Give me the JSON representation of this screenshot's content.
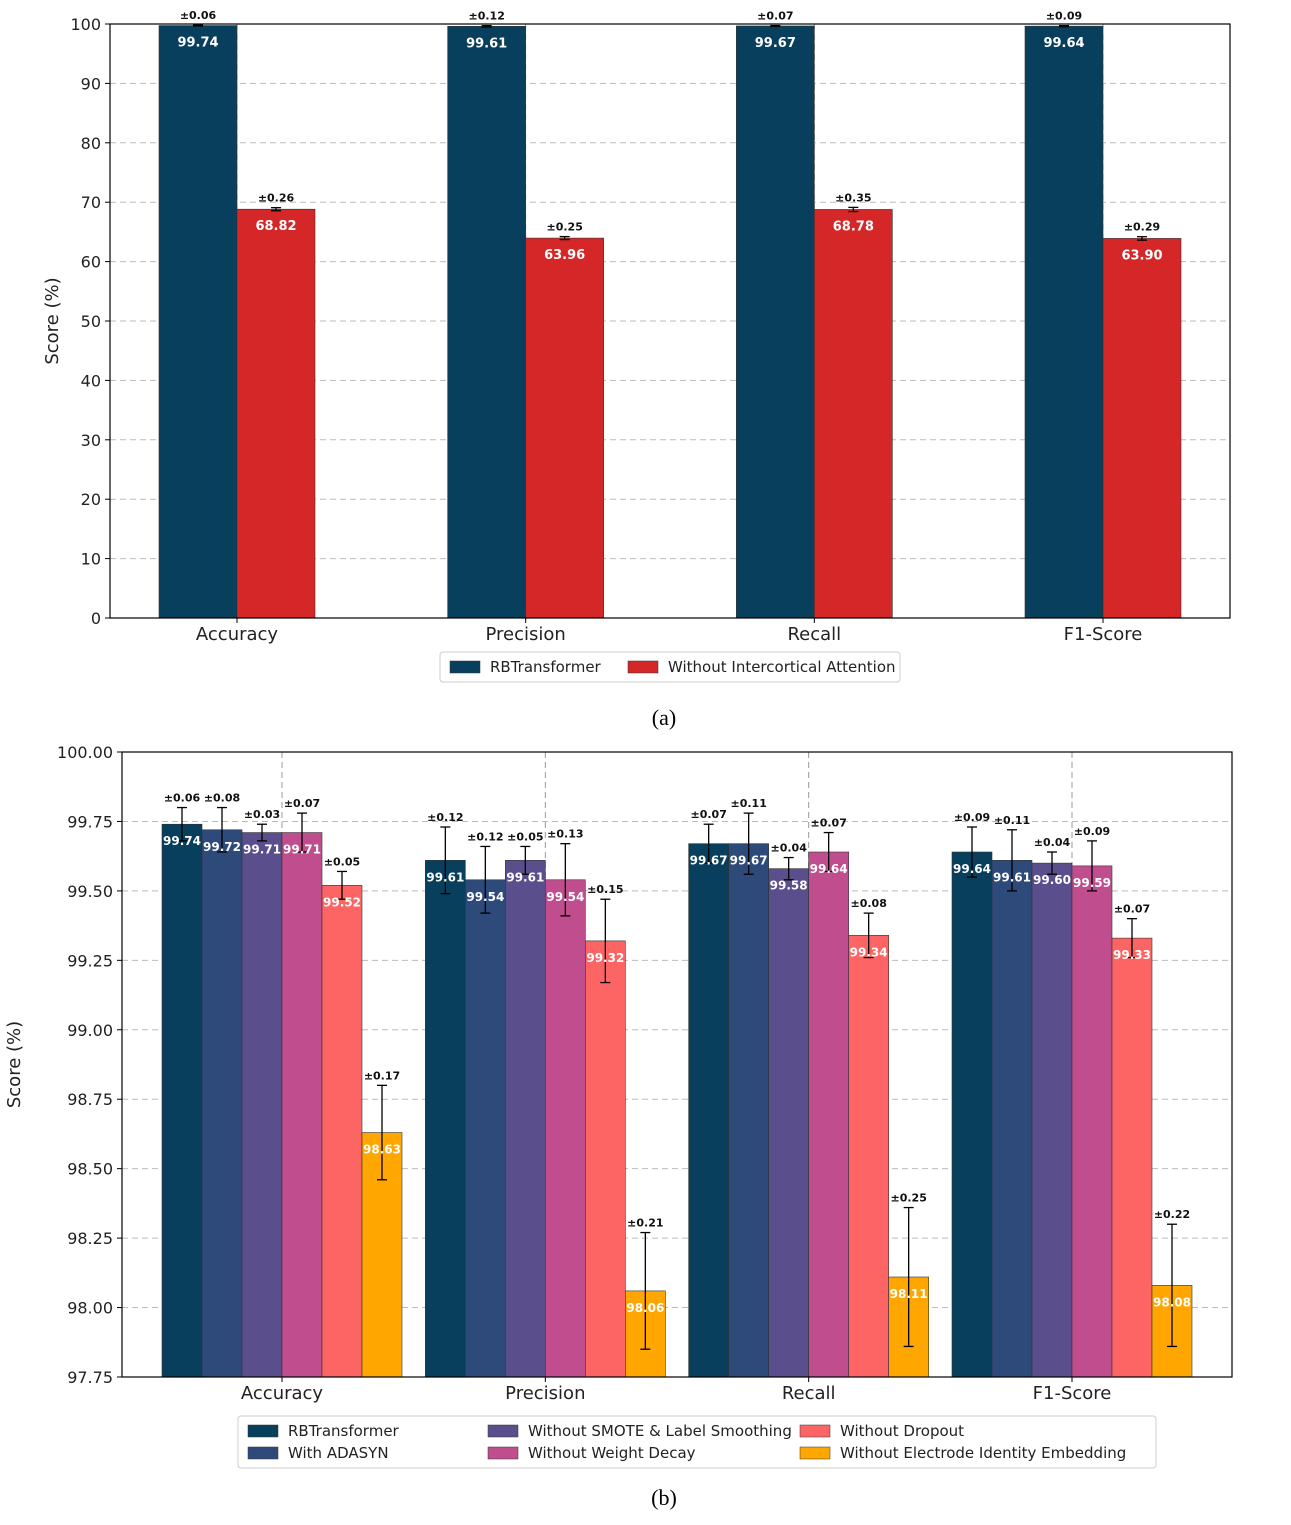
{
  "figure_captions": [
    "(a)",
    "(b)"
  ],
  "colors": {
    "grid": "#bbbbbb",
    "axis": "#000000",
    "vline": "#999999"
  },
  "chart_data": [
    {
      "type": "bar",
      "title": "",
      "xlabel": "",
      "ylabel": "Score (%)",
      "ylim": [
        0,
        100
      ],
      "yticks": [
        "0",
        "10",
        "20",
        "30",
        "40",
        "50",
        "60",
        "70",
        "80",
        "90",
        "100"
      ],
      "ytick_values": [
        0,
        10,
        20,
        30,
        40,
        50,
        60,
        70,
        80,
        90,
        100
      ],
      "grid": true,
      "legend_position": "bottom-center",
      "categories": [
        "Accuracy",
        "Precision",
        "Recall",
        "F1-Score"
      ],
      "series": [
        {
          "name": "RBTransformer",
          "color": "#073f5c",
          "label_color": "#ffffff",
          "values": [
            99.74,
            99.61,
            99.67,
            99.64
          ],
          "value_labels": [
            "99.74",
            "99.61",
            "99.67",
            "99.64"
          ],
          "errors": [
            0.06,
            0.12,
            0.07,
            0.09
          ],
          "error_labels": [
            "±0.06",
            "±0.12",
            "±0.07",
            "±0.09"
          ]
        },
        {
          "name": "Without Intercortical Attention",
          "color": "#d62728",
          "label_color": "#ffffff",
          "values": [
            68.82,
            63.96,
            68.78,
            63.9
          ],
          "value_labels": [
            "68.82",
            "63.96",
            "68.78",
            "63.90"
          ],
          "errors": [
            0.26,
            0.25,
            0.35,
            0.29
          ],
          "error_labels": [
            "±0.26",
            "±0.25",
            "±0.35",
            "±0.29"
          ]
        }
      ]
    },
    {
      "type": "bar",
      "title": "",
      "xlabel": "",
      "ylabel": "Score (%)",
      "ylim": [
        97.75,
        100.0
      ],
      "yticks": [
        "97.75",
        "98.00",
        "98.25",
        "98.50",
        "98.75",
        "99.00",
        "99.25",
        "99.50",
        "99.75",
        "100.00"
      ],
      "ytick_values": [
        97.75,
        98.0,
        98.25,
        98.5,
        98.75,
        99.0,
        99.25,
        99.5,
        99.75,
        100.0
      ],
      "grid": true,
      "legend_position": "bottom-center",
      "categories": [
        "Accuracy",
        "Precision",
        "Recall",
        "F1-Score"
      ],
      "series": [
        {
          "name": "RBTransformer",
          "color": "#073f5c",
          "label_color": "#ffffff",
          "values": [
            99.74,
            99.61,
            99.67,
            99.64
          ],
          "value_labels": [
            "99.74",
            "99.61",
            "99.67",
            "99.64"
          ],
          "errors": [
            0.06,
            0.12,
            0.07,
            0.09
          ],
          "error_labels": [
            "±0.06",
            "±0.12",
            "±0.07",
            "±0.09"
          ]
        },
        {
          "name": "With ADASYN",
          "color": "#2e4a7a",
          "label_color": "#ffffff",
          "values": [
            99.72,
            99.54,
            99.67,
            99.61
          ],
          "value_labels": [
            "99.72",
            "99.54",
            "99.67",
            "99.61"
          ],
          "errors": [
            0.08,
            0.12,
            0.11,
            0.11
          ],
          "error_labels": [
            "±0.08",
            "±0.12",
            "±0.11",
            "±0.11"
          ]
        },
        {
          "name": "Without SMOTE & Label Smoothing",
          "color": "#5a4f8c",
          "label_color": "#ffffff",
          "values": [
            99.71,
            99.61,
            99.58,
            99.6
          ],
          "value_labels": [
            "99.71",
            "99.61",
            "99.58",
            "99.60"
          ],
          "errors": [
            0.03,
            0.05,
            0.04,
            0.04
          ],
          "error_labels": [
            "±0.03",
            "±0.05",
            "±0.04",
            "±0.04"
          ]
        },
        {
          "name": "Without Weight Decay",
          "color": "#c04e8e",
          "label_color": "#ffffff",
          "values": [
            99.71,
            99.54,
            99.64,
            99.59
          ],
          "value_labels": [
            "99.71",
            "99.54",
            "99.64",
            "99.59"
          ],
          "errors": [
            0.07,
            0.13,
            0.07,
            0.09
          ],
          "error_labels": [
            "±0.07",
            "±0.13",
            "±0.07",
            "±0.09"
          ]
        },
        {
          "name": "Without Dropout",
          "color": "#fd6464",
          "label_color": "#ffffff",
          "values": [
            99.52,
            99.32,
            99.34,
            99.33
          ],
          "value_labels": [
            "99.52",
            "99.32",
            "99.34",
            "99.33"
          ],
          "errors": [
            0.05,
            0.15,
            0.08,
            0.07
          ],
          "error_labels": [
            "±0.05",
            "±0.15",
            "±0.08",
            "±0.07"
          ]
        },
        {
          "name": "Without Electrode Identity Embedding",
          "color": "#ffa600",
          "label_color": "#ffffff",
          "values": [
            98.63,
            98.06,
            98.11,
            98.08
          ],
          "value_labels": [
            "98.63",
            "98.06",
            "98.11",
            "98.08"
          ],
          "errors": [
            0.17,
            0.21,
            0.25,
            0.22
          ],
          "error_labels": [
            "±0.17",
            "±0.21",
            "±0.25",
            "±0.22"
          ]
        }
      ]
    }
  ]
}
